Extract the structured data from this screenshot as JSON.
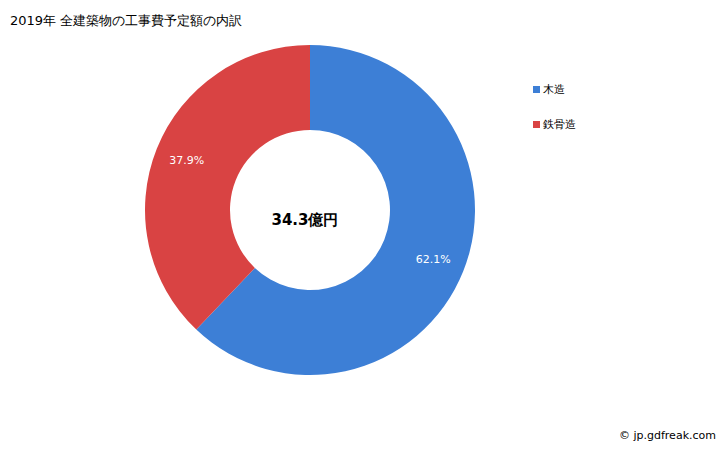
{
  "chart_data": {
    "type": "pie",
    "title": "2019年 全建築物の工事費予定額の内訳",
    "categories": [
      "木造",
      "鉄骨造"
    ],
    "values": [
      62.1,
      37.9
    ],
    "value_labels": [
      "62.1%",
      "37.9%"
    ],
    "colors": [
      "#3d7fd6",
      "#d94343"
    ],
    "data_labels": true,
    "legend": "top-right",
    "center_label": "34.3億円",
    "source": "© jp.gdfreak.com"
  }
}
